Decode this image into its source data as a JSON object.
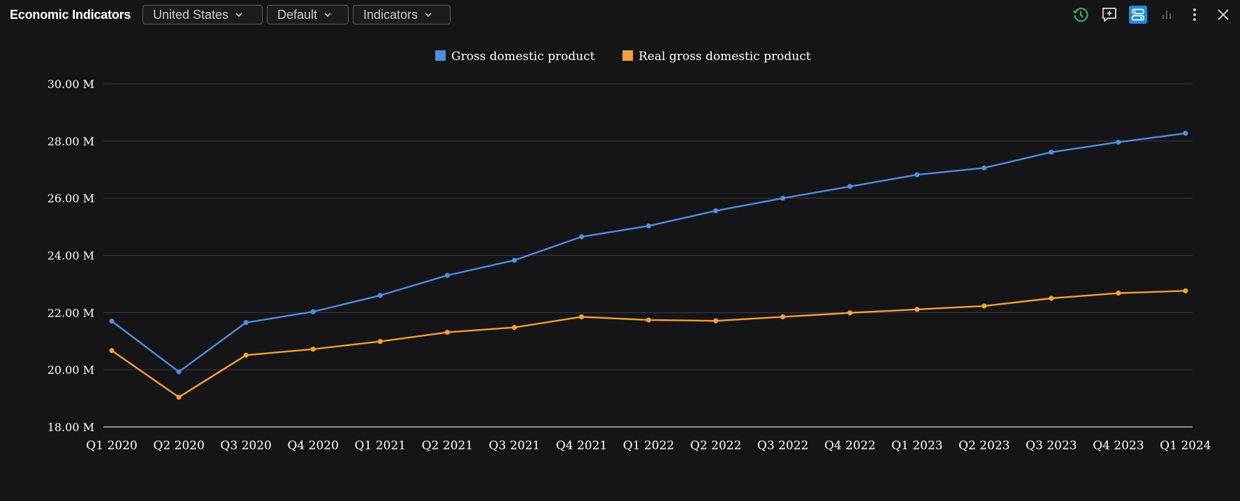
{
  "header": {
    "title": "Economic Indicators",
    "country": "United States",
    "view": "Default",
    "indicators": "Indicators"
  },
  "toolbar": {
    "icons": [
      "history-icon",
      "add-comment-icon",
      "layout-toggle-icon",
      "bar-chart-icon",
      "more-vertical-icon",
      "close-icon"
    ],
    "accent": "#1a8fd8"
  },
  "chart_data": {
    "type": "line",
    "categories": [
      "Q1 2020",
      "Q2 2020",
      "Q3 2020",
      "Q4 2020",
      "Q1 2021",
      "Q2 2021",
      "Q3 2021",
      "Q4 2021",
      "Q1 2022",
      "Q2 2022",
      "Q3 2022",
      "Q4 2022",
      "Q1 2023",
      "Q2 2023",
      "Q3 2023",
      "Q4 2023",
      "Q1 2024"
    ],
    "series": [
      {
        "name": "Gross domestic product",
        "color": "#4e8fdf",
        "values": [
          21.7,
          19.93,
          21.65,
          22.03,
          22.6,
          23.3,
          23.83,
          24.65,
          25.03,
          25.56,
          26.0,
          26.41,
          26.82,
          27.06,
          27.61,
          27.96,
          28.27
        ]
      },
      {
        "name": "Real gross domestic product",
        "color": "#f5a03a",
        "values": [
          20.67,
          19.04,
          20.51,
          20.72,
          20.99,
          21.31,
          21.48,
          21.85,
          21.74,
          21.71,
          21.85,
          21.99,
          22.11,
          22.23,
          22.5,
          22.68,
          22.76
        ]
      }
    ],
    "yticks": [
      "18.00 M",
      "20.00 M",
      "22.00 M",
      "24.00 M",
      "26.00 M",
      "28.00 M",
      "30.00 M"
    ],
    "ylim": [
      18,
      30
    ],
    "legend_position": "top-center",
    "grid": true
  }
}
